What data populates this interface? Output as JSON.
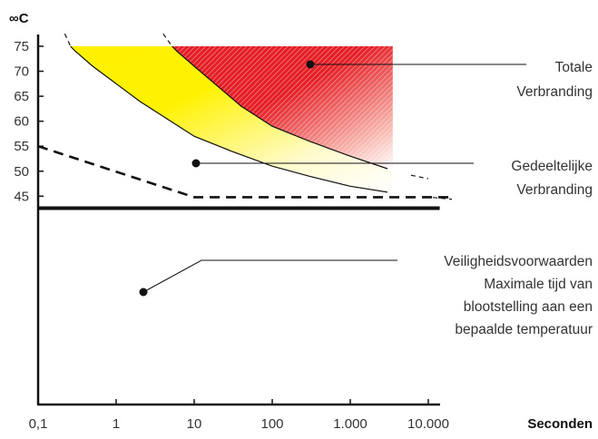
{
  "chart_data": {
    "type": "area",
    "y_unit_label": "∞C",
    "x_unit_label": "Seconden",
    "x_scale": "log",
    "x_ticks": [
      "0,1",
      "1",
      "10",
      "100",
      "1.000",
      "10.000"
    ],
    "x_tick_values": [
      0.1,
      1,
      10,
      100,
      1000,
      10000
    ],
    "y_ticks": [
      "45",
      "50",
      "55",
      "60",
      "65",
      "70",
      "75"
    ],
    "y_tick_values": [
      45,
      50,
      55,
      60,
      65,
      70,
      75
    ],
    "ylim": [
      38.5,
      77
    ],
    "xlim": [
      0.1,
      40000
    ],
    "grid": false,
    "curves": {
      "left_boundary": [
        [
          0.23,
          75.5
        ],
        [
          0.3,
          74
        ],
        [
          0.5,
          71
        ],
        [
          1,
          67.5
        ],
        [
          2,
          64
        ],
        [
          5,
          60
        ],
        [
          10,
          57
        ],
        [
          30,
          54
        ],
        [
          100,
          51
        ],
        [
          300,
          49
        ],
        [
          1000,
          47
        ],
        [
          3000,
          45.8
        ],
        [
          10000,
          44.8
        ],
        [
          20000,
          44.4
        ]
      ],
      "middle_boundary": [
        [
          4.5,
          75.5
        ],
        [
          6,
          74
        ],
        [
          10,
          71
        ],
        [
          20,
          67
        ],
        [
          40,
          63
        ],
        [
          100,
          59
        ],
        [
          300,
          56
        ],
        [
          1000,
          53
        ],
        [
          3000,
          50.5
        ],
        [
          7000,
          49
        ],
        [
          10000,
          48.5
        ]
      ],
      "partial_zone_right_limit_x": 3500
    },
    "safety_line": [
      [
        0.1,
        55
      ],
      [
        10,
        44.8
      ],
      [
        20000,
        44.8
      ]
    ],
    "baseline_temperature": 42.6,
    "colors": {
      "yellow": "#fff100",
      "red": "#e41f26",
      "axis": "#111111",
      "text": "#333333"
    },
    "annotations": [
      {
        "id": "total",
        "lines": [
          "Totale",
          "Verbranding"
        ]
      },
      {
        "id": "partial",
        "lines": [
          "Gedeeltelijke",
          "Verbranding"
        ]
      },
      {
        "id": "safety",
        "lines": [
          "Veiligheidsvoorwaarden",
          "Maximale tijd van",
          "blootstelling aan een",
          "bepaalde temperatuur"
        ]
      }
    ]
  }
}
